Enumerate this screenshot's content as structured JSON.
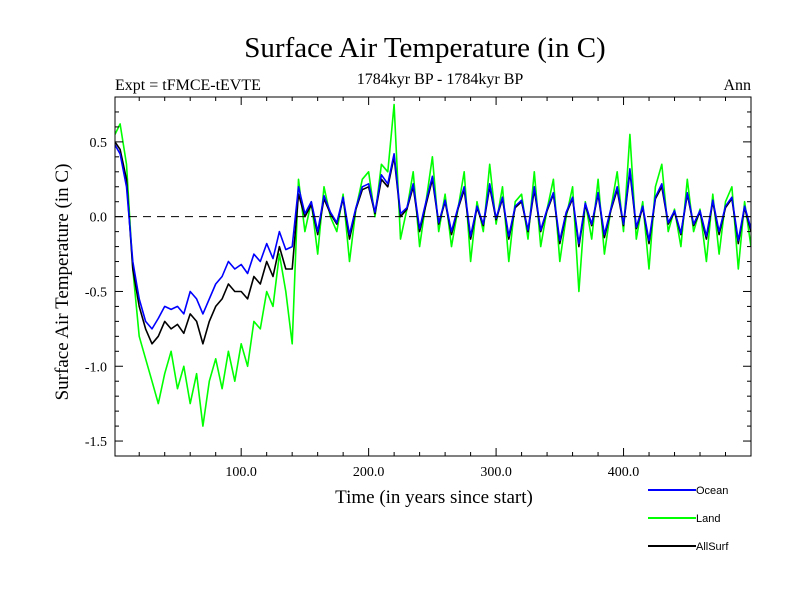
{
  "chart_data": {
    "type": "line",
    "title": "Surface Air Temperature (in C)",
    "subtitle_left": "Expt = tFMCE-tEVTE",
    "subtitle_center": "1784kyr BP - 1784kyr BP",
    "subtitle_right": "Ann",
    "xlabel": "Time (in years since start)",
    "ylabel": "Surface Air Temperature (in C)",
    "xlim": [
      1,
      500
    ],
    "ylim": [
      -1.6,
      0.8
    ],
    "xticks": [
      {
        "value": 100,
        "label": "100.0"
      },
      {
        "value": 200,
        "label": "200.0"
      },
      {
        "value": 300,
        "label": "300.0"
      },
      {
        "value": 400,
        "label": "400.0"
      }
    ],
    "yticks": [
      {
        "value": 0.5,
        "label": "0.5"
      },
      {
        "value": 0.0,
        "label": "0.0"
      },
      {
        "value": -0.5,
        "label": "-0.5"
      },
      {
        "value": -1.0,
        "label": "-1.0"
      },
      {
        "value": -1.5,
        "label": "-1.5"
      }
    ],
    "reference_line": {
      "y": 0.0,
      "style": "dashed"
    },
    "legend_position": "bottom-right",
    "series_colors": {
      "Ocean": "#0000ff",
      "Land": "#00ff00",
      "AllSurf": "#000000"
    },
    "x": [
      1,
      5,
      10,
      15,
      20,
      25,
      30,
      35,
      40,
      45,
      50,
      55,
      60,
      65,
      70,
      75,
      80,
      85,
      90,
      95,
      100,
      105,
      110,
      115,
      120,
      125,
      130,
      135,
      140,
      145,
      150,
      155,
      160,
      165,
      170,
      175,
      180,
      185,
      190,
      195,
      200,
      205,
      210,
      215,
      220,
      225,
      230,
      235,
      240,
      245,
      250,
      255,
      260,
      265,
      270,
      275,
      280,
      285,
      290,
      295,
      300,
      305,
      310,
      315,
      320,
      325,
      330,
      335,
      340,
      345,
      350,
      355,
      360,
      365,
      370,
      375,
      380,
      385,
      390,
      395,
      400,
      405,
      410,
      415,
      420,
      425,
      430,
      435,
      440,
      445,
      450,
      455,
      460,
      465,
      470,
      475,
      480,
      485,
      490,
      495,
      500
    ],
    "series": [
      {
        "name": "Land",
        "values": [
          0.55,
          0.62,
          0.35,
          -0.35,
          -0.8,
          -0.95,
          -1.1,
          -1.25,
          -1.05,
          -0.9,
          -1.15,
          -1.0,
          -1.25,
          -1.05,
          -1.4,
          -1.1,
          -0.95,
          -1.15,
          -0.9,
          -1.1,
          -0.85,
          -1.0,
          -0.7,
          -0.75,
          -0.5,
          -0.6,
          -0.25,
          -0.5,
          -0.85,
          0.25,
          -0.1,
          0.1,
          -0.25,
          0.2,
          0.0,
          -0.1,
          0.15,
          -0.3,
          0.05,
          0.25,
          0.3,
          0.0,
          0.35,
          0.3,
          0.75,
          -0.15,
          0.05,
          0.3,
          -0.2,
          0.1,
          0.4,
          -0.1,
          0.15,
          -0.2,
          0.05,
          0.3,
          -0.3,
          0.1,
          -0.1,
          0.35,
          -0.05,
          0.2,
          -0.3,
          0.1,
          0.15,
          -0.15,
          0.3,
          -0.2,
          0.05,
          0.25,
          -0.3,
          0.0,
          0.2,
          -0.5,
          0.1,
          -0.15,
          0.25,
          -0.25,
          0.05,
          0.3,
          -0.1,
          0.55,
          -0.15,
          0.1,
          -0.35,
          0.2,
          0.35,
          -0.1,
          0.05,
          -0.2,
          0.25,
          -0.1,
          0.05,
          -0.3,
          0.15,
          -0.25,
          0.1,
          0.2,
          -0.35,
          0.1,
          -0.2
        ]
      },
      {
        "name": "AllSurf",
        "values": [
          0.5,
          0.45,
          0.25,
          -0.35,
          -0.6,
          -0.75,
          -0.85,
          -0.8,
          -0.7,
          -0.75,
          -0.72,
          -0.78,
          -0.65,
          -0.7,
          -0.85,
          -0.7,
          -0.6,
          -0.55,
          -0.45,
          -0.5,
          -0.5,
          -0.55,
          -0.4,
          -0.45,
          -0.3,
          -0.4,
          -0.2,
          -0.35,
          -0.35,
          0.15,
          0.0,
          0.08,
          -0.12,
          0.12,
          0.02,
          -0.05,
          0.12,
          -0.15,
          0.05,
          0.18,
          0.2,
          0.02,
          0.25,
          0.2,
          0.4,
          0.0,
          0.05,
          0.2,
          -0.1,
          0.08,
          0.25,
          -0.05,
          0.1,
          -0.12,
          0.05,
          0.18,
          -0.15,
          0.06,
          -0.06,
          0.2,
          -0.02,
          0.12,
          -0.15,
          0.06,
          0.1,
          -0.1,
          0.18,
          -0.1,
          0.04,
          0.15,
          -0.18,
          0.02,
          0.12,
          -0.2,
          0.08,
          -0.06,
          0.15,
          -0.14,
          0.04,
          0.18,
          -0.06,
          0.3,
          -0.08,
          0.06,
          -0.18,
          0.12,
          0.2,
          -0.05,
          0.03,
          -0.12,
          0.15,
          -0.06,
          0.03,
          -0.15,
          0.1,
          -0.12,
          0.06,
          0.12,
          -0.18,
          0.06,
          -0.1
        ]
      },
      {
        "name": "Ocean",
        "values": [
          0.48,
          0.42,
          0.2,
          -0.3,
          -0.55,
          -0.7,
          -0.75,
          -0.68,
          -0.6,
          -0.62,
          -0.6,
          -0.65,
          -0.5,
          -0.55,
          -0.65,
          -0.55,
          -0.45,
          -0.4,
          -0.3,
          -0.35,
          -0.32,
          -0.38,
          -0.25,
          -0.3,
          -0.18,
          -0.28,
          -0.1,
          -0.22,
          -0.2,
          0.2,
          0.02,
          0.1,
          -0.1,
          0.14,
          0.03,
          -0.04,
          0.13,
          -0.12,
          0.06,
          0.2,
          0.22,
          0.03,
          0.28,
          0.22,
          0.42,
          0.02,
          0.06,
          0.22,
          -0.08,
          0.1,
          0.27,
          -0.04,
          0.11,
          -0.1,
          0.06,
          0.2,
          -0.13,
          0.07,
          -0.05,
          0.22,
          -0.01,
          0.13,
          -0.13,
          0.07,
          0.11,
          -0.09,
          0.2,
          -0.09,
          0.05,
          0.16,
          -0.16,
          0.03,
          0.13,
          -0.18,
          0.09,
          -0.05,
          0.16,
          -0.12,
          0.05,
          0.2,
          -0.05,
          0.32,
          -0.07,
          0.07,
          -0.16,
          0.13,
          0.22,
          -0.04,
          0.04,
          -0.11,
          0.16,
          -0.05,
          0.04,
          -0.13,
          0.11,
          -0.1,
          0.07,
          0.13,
          -0.16,
          0.07,
          -0.08
        ]
      }
    ]
  }
}
